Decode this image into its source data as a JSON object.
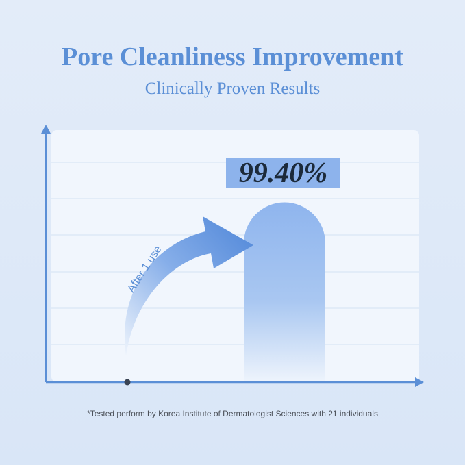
{
  "header": {
    "title": "Pore Cleanliness Improvement",
    "subtitle": "Clinically Proven Results"
  },
  "badge": "99.40%",
  "annotation": "After 1 use",
  "footnote": "*Tested perform by Korea Institute of Dermatologist Sciences with 21 individuals"
}
